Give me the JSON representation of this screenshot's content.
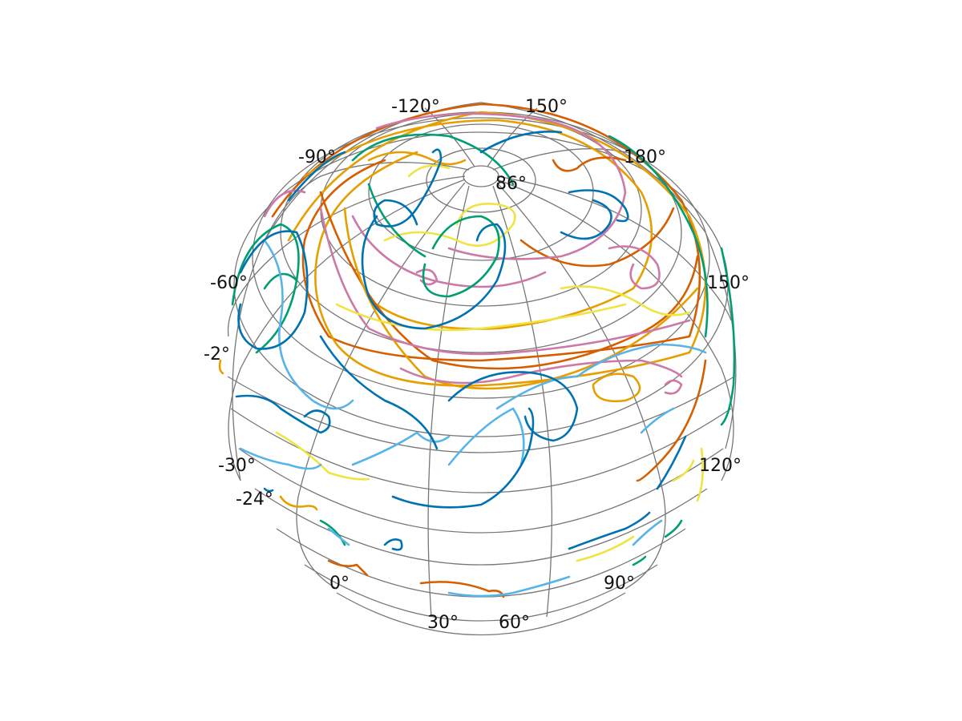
{
  "map": {
    "projection": "orthographic globe",
    "graticule_color": "#777777",
    "palette": [
      "#0072b2",
      "#56b4e9",
      "#009e73",
      "#e69f00",
      "#d55e00",
      "#cc79a7",
      "#f0e442"
    ],
    "tick_labels": [
      {
        "name": "lon-label-minus-120",
        "text": "-120°"
      },
      {
        "name": "lon-label-150-top",
        "text": "150°"
      },
      {
        "name": "lon-label-minus-90",
        "text": "-90°"
      },
      {
        "name": "lat-label-86",
        "text": "86°"
      },
      {
        "name": "lon-label-180-overlap",
        "text": "180°"
      },
      {
        "name": "lon-label-minus-60",
        "text": "-60°"
      },
      {
        "name": "lon-label-150-right",
        "text": "150°"
      },
      {
        "name": "lat-label-minus-2",
        "text": "-2°"
      },
      {
        "name": "lon-label-minus-30",
        "text": "-30°"
      },
      {
        "name": "lon-label-120",
        "text": "120°"
      },
      {
        "name": "lat-label-minus-24",
        "text": "-24°"
      },
      {
        "name": "lon-label-0",
        "text": "0°"
      },
      {
        "name": "lon-label-90",
        "text": "90°"
      },
      {
        "name": "lon-label-30",
        "text": "30°"
      },
      {
        "name": "lon-label-60",
        "text": "60°"
      }
    ]
  }
}
